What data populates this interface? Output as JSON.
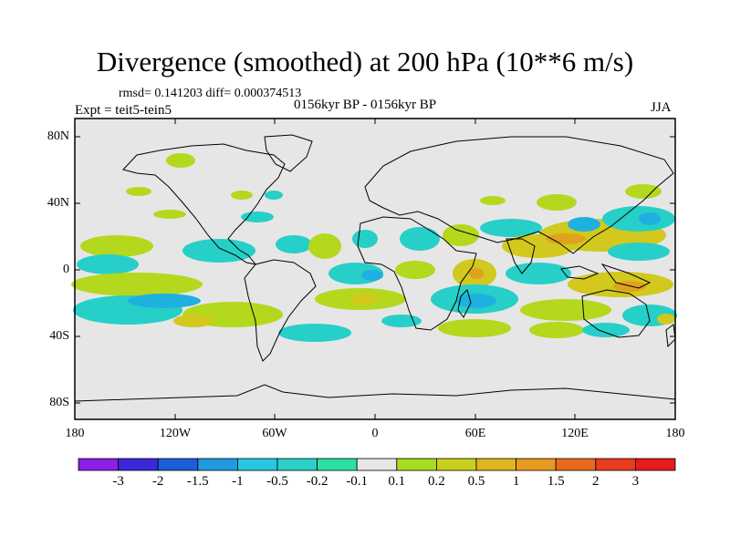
{
  "title": "Divergence (smoothed) at 200 hPa (10**6 m/s)",
  "stats_line": "rmsd= 0.141203 diff= 0.000374513",
  "period": "0156kyr BP - 0156kyr BP",
  "experiment": "Expt = teit5-tein5",
  "season": "JJA",
  "lat_ticks": [
    "80N",
    "40N",
    "0",
    "40S",
    "80S"
  ],
  "lon_ticks": [
    "180",
    "120W",
    "60W",
    "0",
    "60E",
    "120E",
    "180"
  ],
  "colorbar": {
    "labels": [
      "-3",
      "-2",
      "-1.5",
      "-1",
      "-0.5",
      "-0.2",
      "-0.1",
      "0.1",
      "0.2",
      "0.5",
      "1",
      "1.5",
      "2",
      "3"
    ],
    "colors": [
      "#8a1fe6",
      "#3a28d8",
      "#1a5fd8",
      "#1f9ae0",
      "#27c7e0",
      "#2ad0c8",
      "#2ee0a0",
      "#e6e6e6",
      "#a8dc1e",
      "#c8d01e",
      "#dcb81e",
      "#e89a1e",
      "#e86a1e",
      "#e83a1e",
      "#e81a1a"
    ]
  },
  "map_colors": {
    "background": "#e6e6e6",
    "pos_weak": "#b4d81e",
    "pos_mid": "#d2c81e",
    "pos_strong": "#e0a21e",
    "neg_weak": "#26cfc8",
    "neg_mid": "#1fb0e0",
    "neg_strong": "#1f8fe0"
  }
}
